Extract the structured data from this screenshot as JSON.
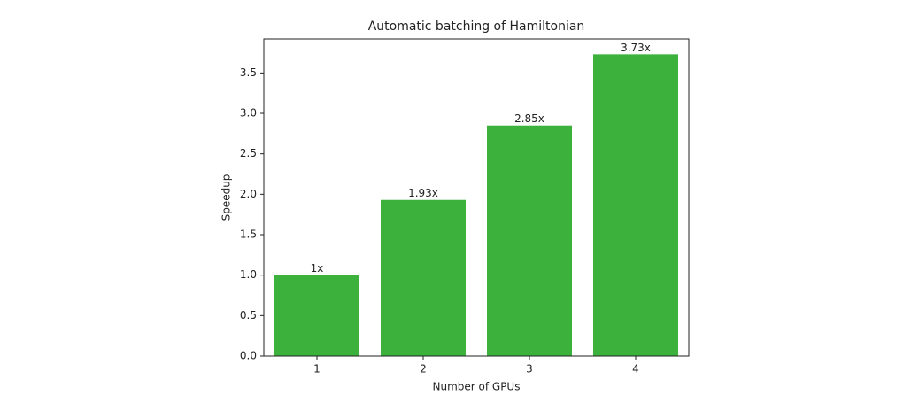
{
  "chart_data": {
    "type": "bar",
    "title": "Automatic batching of Hamiltonian",
    "x_label": "Number of GPUs",
    "y_label": "Speedup",
    "categories": [
      "1",
      "2",
      "3",
      "4"
    ],
    "values": [
      1,
      1.93,
      2.85,
      3.73
    ],
    "value_labels": [
      "1x",
      "1.93x",
      "2.85x",
      "3.73x"
    ],
    "color": "#3cb13c",
    "ylim": [
      0,
      3.92
    ],
    "yticks": [
      {
        "value": 0,
        "label": "0.0"
      },
      0.5,
      {
        "value": 1,
        "label": "1.0"
      },
      1.5,
      {
        "value": 2,
        "label": "2.0"
      },
      2.5,
      {
        "value": 3,
        "label": "3.0"
      },
      3.5
    ],
    "grid": false
  }
}
